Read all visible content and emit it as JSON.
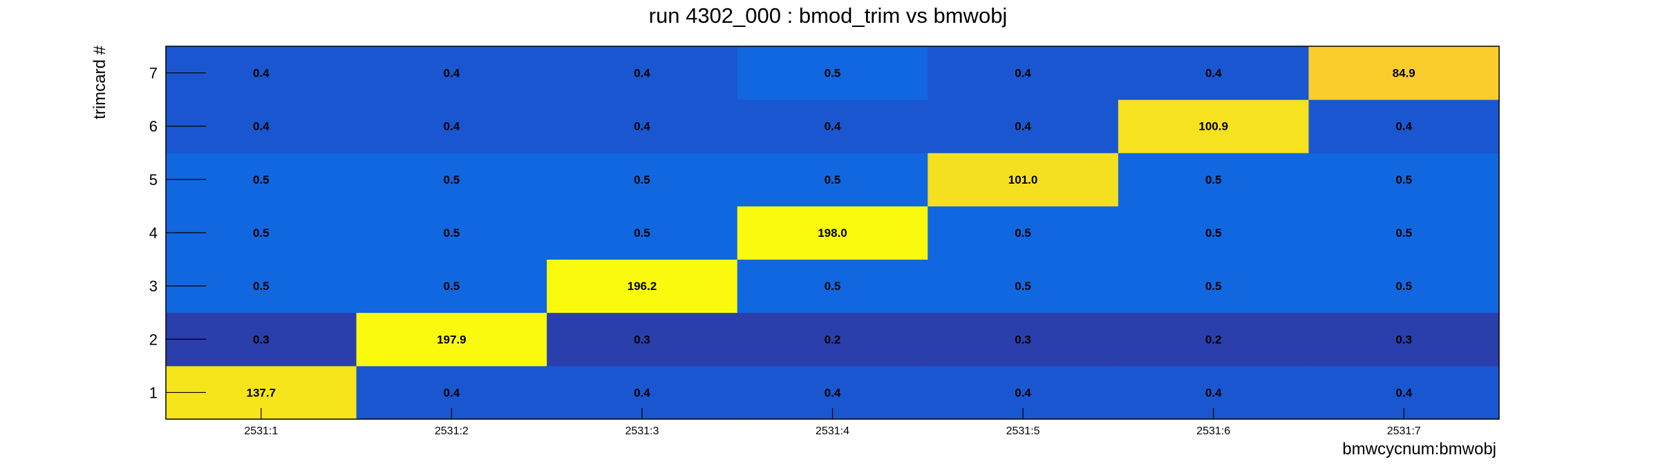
{
  "chart_data": {
    "type": "heatmap",
    "title": "run 4302_000 : bmod_trim vs bmwobj",
    "xlabel": "bmwcycnum:bmwobj",
    "ylabel": "trimcard #",
    "x_categories": [
      "2531:1",
      "2531:2",
      "2531:3",
      "2531:4",
      "2531:5",
      "2531:6",
      "2531:7"
    ],
    "y_categories": [
      "1",
      "2",
      "3",
      "4",
      "5",
      "6",
      "7"
    ],
    "values": [
      [
        137.7,
        0.4,
        0.4,
        0.4,
        0.4,
        0.4,
        0.4
      ],
      [
        0.3,
        197.9,
        0.3,
        0.2,
        0.3,
        0.2,
        0.3
      ],
      [
        0.5,
        0.5,
        196.2,
        0.5,
        0.5,
        0.5,
        0.5
      ],
      [
        0.5,
        0.5,
        0.5,
        198.0,
        0.5,
        0.5,
        0.5
      ],
      [
        0.5,
        0.5,
        0.5,
        0.5,
        101.0,
        0.5,
        0.5
      ],
      [
        0.4,
        0.4,
        0.4,
        0.4,
        0.4,
        100.9,
        0.4
      ],
      [
        0.4,
        0.4,
        0.4,
        0.5,
        0.4,
        0.4,
        84.9
      ]
    ],
    "labels": [
      [
        "137.7",
        "0.4",
        "0.4",
        "0.4",
        "0.4",
        "0.4",
        "0.4"
      ],
      [
        "0.3",
        "197.9",
        "0.3",
        "0.2",
        "0.3",
        "0.2",
        "0.3"
      ],
      [
        "0.5",
        "0.5",
        "196.2",
        "0.5",
        "0.5",
        "0.5",
        "0.5"
      ],
      [
        "0.5",
        "0.5",
        "0.5",
        "198.0",
        "0.5",
        "0.5",
        "0.5"
      ],
      [
        "0.5",
        "0.5",
        "0.5",
        "0.5",
        "101.0",
        "0.5",
        "0.5"
      ],
      [
        "0.4",
        "0.4",
        "0.4",
        "0.4",
        "0.4",
        "100.9",
        "0.4"
      ],
      [
        "0.4",
        "0.4",
        "0.4",
        "0.5",
        "0.4",
        "0.4",
        "84.9"
      ]
    ],
    "grid": false,
    "colors": {
      "bin_0_2": "#2a3eac",
      "bin_0_4": "#1a56cf",
      "bin_0_5": "#1167df",
      "bin_84_9": "#fbcd2c",
      "bin_100_9": "#f6e21e",
      "bin_101_0": "#f4df20",
      "bin_137_7": "#f6e51a",
      "bin_high": "#fafa0f",
      "axis": "#000000"
    }
  }
}
